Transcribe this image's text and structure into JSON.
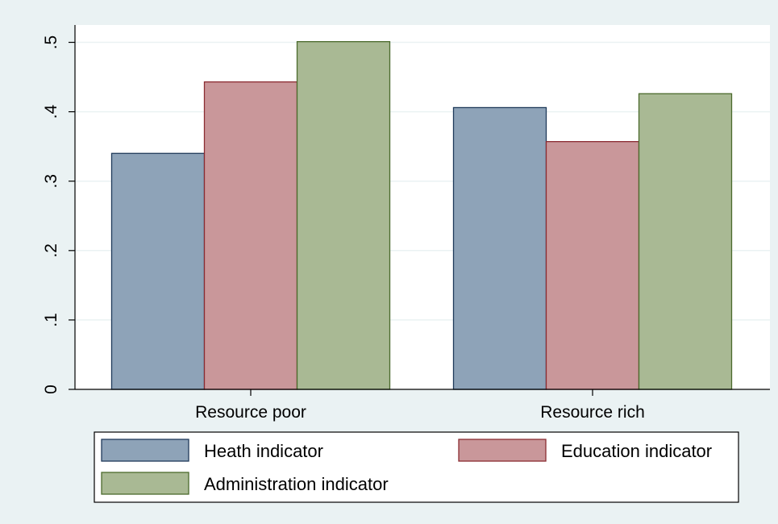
{
  "chart_data": {
    "type": "bar",
    "categories": [
      "Resource poor",
      "Resource rich"
    ],
    "series": [
      {
        "name": "Heath indicator",
        "values": [
          0.34,
          0.406
        ],
        "color": "#8ea3b8",
        "stroke": "#1f3a5a"
      },
      {
        "name": "Education indicator",
        "values": [
          0.443,
          0.357
        ],
        "color": "#c9979a",
        "stroke": "#8b2c32"
      },
      {
        "name": "Administration indicator",
        "values": [
          0.501,
          0.426
        ],
        "color": "#a9b994",
        "stroke": "#4b6a2c"
      }
    ],
    "ylim": [
      0,
      0.525
    ],
    "yticks": [
      0,
      0.1,
      0.2,
      0.3,
      0.4,
      0.5
    ],
    "ytick_labels": [
      "0",
      ".1",
      ".2",
      ".3",
      ".4",
      ".5"
    ],
    "title": "",
    "xlabel": "",
    "ylabel": "",
    "grid": true,
    "legend_position": "bottom",
    "background_color": "#eaf2f3",
    "plot_background_color": "#ffffff",
    "grid_color": "#eaf2f3"
  }
}
